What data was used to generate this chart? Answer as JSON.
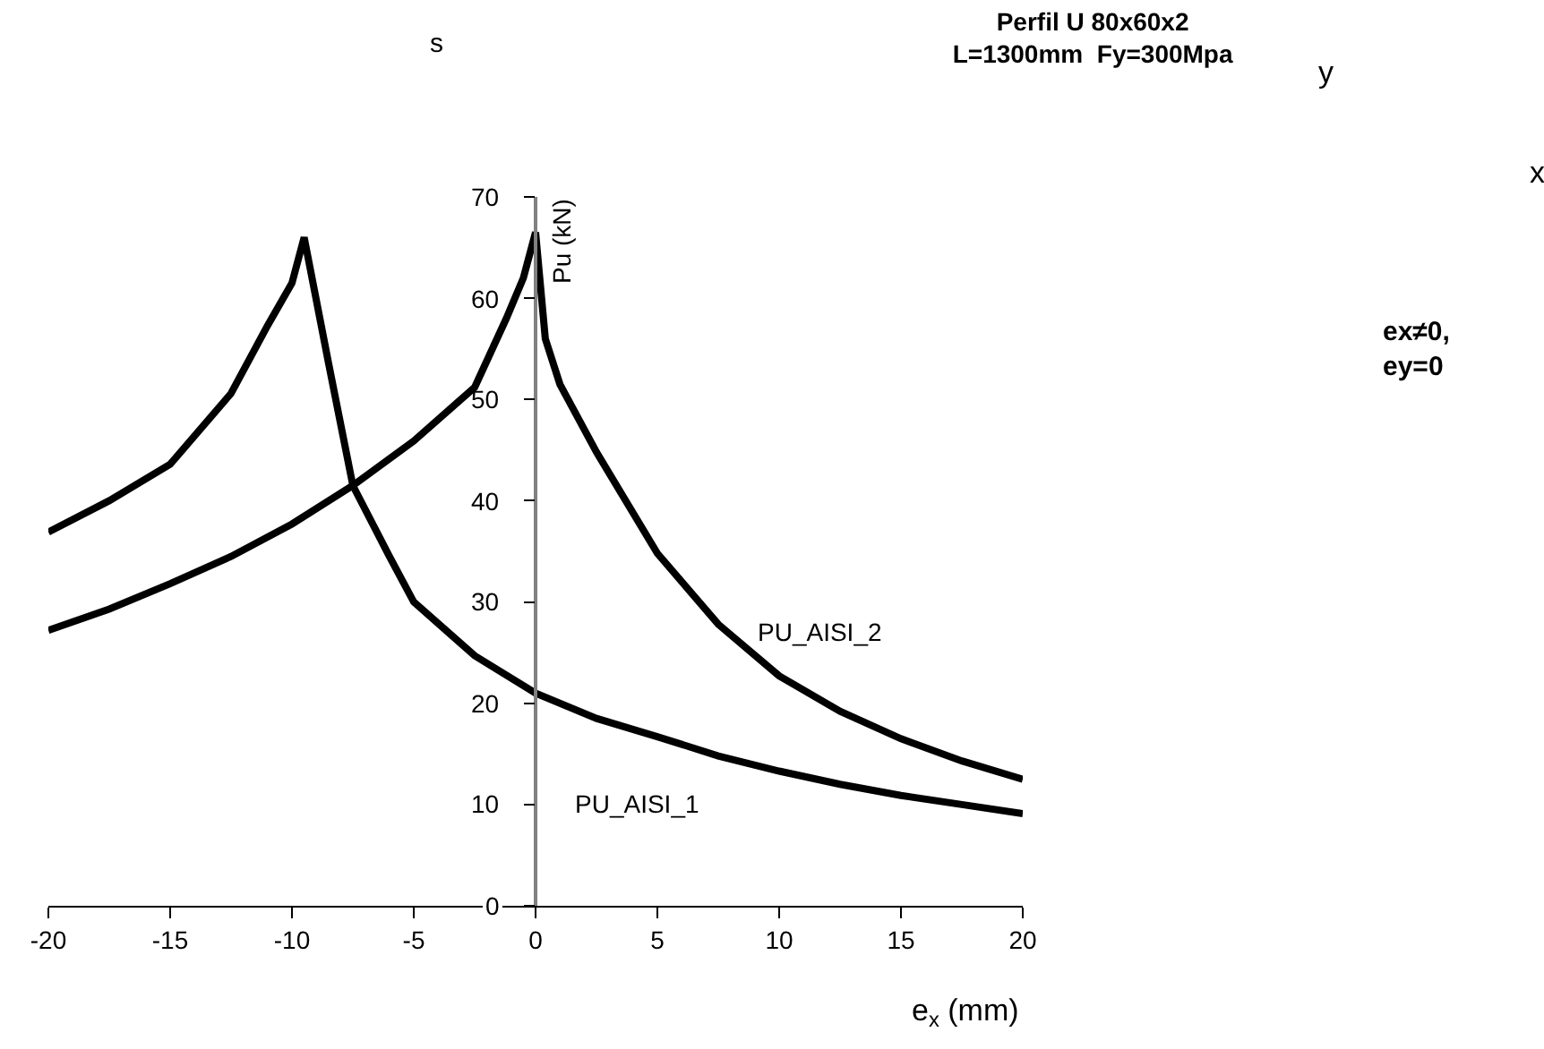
{
  "chart_data": {
    "type": "line",
    "title": "Perfil U 80x60x2\nL=1300mm  Fy=300Mpa",
    "xlabel": "e$_{x}$ (mm)",
    "ylabel": "Pu (kN)",
    "series": [
      {
        "name": "PU_AISI_1",
        "color": "#000000",
        "x": [
          -20,
          -17.5,
          -15,
          -12.5,
          -11,
          -10,
          -9.5,
          -8.5,
          -7.5,
          -6,
          -5,
          -2.5,
          0,
          2.5,
          5,
          7.5,
          10,
          12.5,
          15,
          17.5,
          20
        ],
        "values": [
          36.9,
          40,
          43.6,
          50.6,
          57.3,
          61.5,
          66,
          53.6,
          41.5,
          34.5,
          30,
          24.7,
          21,
          18.5,
          16.7,
          14.8,
          13.3,
          12,
          10.9,
          10,
          9.1
        ]
      },
      {
        "name": "PU_AISI_2",
        "color": "#000000",
        "x": [
          -20,
          -17.5,
          -15,
          -12.5,
          -10,
          -7.5,
          -5,
          -2.5,
          -1.2,
          -0.5,
          0,
          0.4,
          1,
          2.5,
          5,
          7.5,
          10,
          12.5,
          15,
          17.5,
          20
        ],
        "values": [
          27.2,
          29.3,
          31.8,
          34.5,
          37.7,
          41.5,
          45.9,
          51.2,
          58,
          62,
          66.5,
          56,
          51.5,
          44.8,
          34.8,
          27.8,
          22.7,
          19.2,
          16.5,
          14.3,
          12.5
        ]
      }
    ],
    "annotations": [
      "s",
      "y",
      "x",
      "ex≠0,\ney=0"
    ],
    "xlim": [
      -20,
      20
    ],
    "xticks": [
      -20,
      -15,
      -10,
      -5,
      0,
      5,
      10,
      15,
      20
    ],
    "ylim": [
      0,
      70
    ],
    "yticks": [
      0,
      10,
      20,
      30,
      40,
      50,
      60,
      70
    ],
    "grid": false,
    "legend": false,
    "marker": "none",
    "line_style": "solid"
  }
}
